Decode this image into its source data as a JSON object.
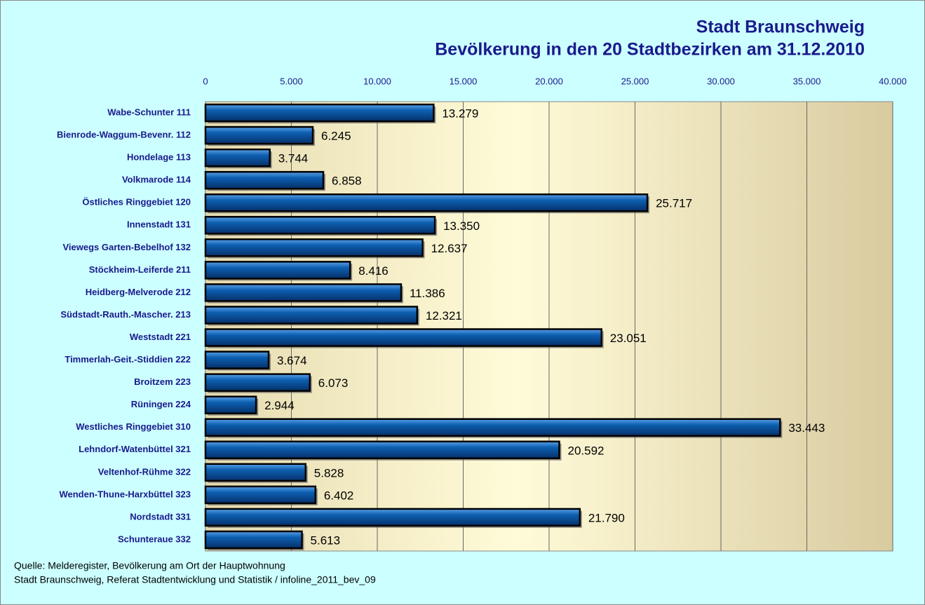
{
  "chart_data": {
    "type": "barh",
    "title": "Stadt Braunschweig",
    "subtitle": "Bevölkerung in den 20 Stadtbezirken am 31.12.2010",
    "categories": [
      "Wabe-Schunter 111",
      "Bienrode-Waggum-Bevenr. 112",
      "Hondelage 113",
      "Volkmarode 114",
      "Östliches Ringgebiet 120",
      "Innenstadt 131",
      "Viewegs Garten-Bebelhof 132",
      "Stöckheim-Leiferde 211",
      "Heidberg-Melverode 212",
      "Südstadt-Rauth.-Mascher. 213",
      "Weststadt 221",
      "Timmerlah-Geit.-Stiddien 222",
      "Broitzem 223",
      "Rüningen 224",
      "Westliches Ringgebiet 310",
      "Lehndorf-Watenbüttel 321",
      "Veltenhof-Rühme 322",
      "Wenden-Thune-Harxbüttel 323",
      "Nordstadt 331",
      "Schunteraue 332"
    ],
    "values": [
      13279,
      6245,
      3744,
      6858,
      25717,
      13350,
      12637,
      8416,
      11386,
      12321,
      23051,
      3674,
      6073,
      2944,
      33443,
      20592,
      5828,
      6402,
      21790,
      5613
    ],
    "value_labels": [
      "13.279",
      "6.245",
      "3.744",
      "6.858",
      "25.717",
      "13.350",
      "12.637",
      "8.416",
      "11.386",
      "12.321",
      "23.051",
      "3.674",
      "6.073",
      "2.944",
      "33.443",
      "20.592",
      "5.828",
      "6.402",
      "21.790",
      "5.613"
    ],
    "color": "#0a5aa8",
    "xlim": [
      0,
      40000
    ],
    "xticks": [
      0,
      {
        "value": 5000,
        "label": "5.000"
      },
      {
        "value": 10000,
        "label": "10.000"
      },
      {
        "value": 15000,
        "label": "15.000"
      },
      {
        "value": 20000,
        "label": "20.000"
      },
      {
        "value": 25000,
        "label": "25.000"
      },
      {
        "value": 30000,
        "label": "30.000"
      },
      {
        "value": 35000,
        "label": "35.000"
      },
      {
        "value": 40000,
        "label": "40.000"
      }
    ],
    "grid": true,
    "notes": [
      "Quelle: Melderegister, Bevölkerung am Ort der Hauptwohnung",
      "Stadt Braunschweig, Referat Stadtentwicklung und Statistik / infoline_2011_bev_09"
    ]
  }
}
